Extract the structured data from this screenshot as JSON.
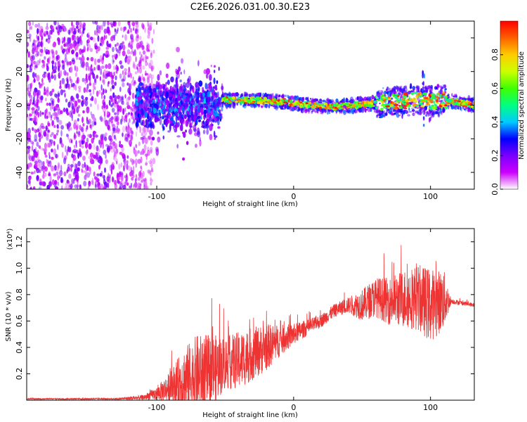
{
  "title": "C2E6.2026.031.00.30.E23",
  "chart_data": [
    {
      "type": "heatmap",
      "name": "spectrogram",
      "xlabel": "Height of straight line (km)",
      "ylabel": "Frequency (Hz)",
      "xlim": [
        -195,
        132
      ],
      "ylim": [
        -50,
        50
      ],
      "xticks": [
        -100,
        0,
        100
      ],
      "xtick_labels": [
        "-100",
        "0",
        "100"
      ],
      "yticks": [
        -40,
        -20,
        0,
        20,
        40
      ],
      "ytick_labels": [
        "-40",
        "-20",
        "0",
        "20",
        "40"
      ],
      "colorbar": {
        "label": "Normalized spectral amplitude",
        "range": [
          0,
          1
        ],
        "ticks": [
          0.0,
          0.2,
          0.4,
          0.6,
          0.8
        ],
        "tick_labels": [
          "0.0",
          "0.2",
          "0.4",
          "0.6",
          "0.8"
        ],
        "colors": [
          "#ffffff",
          "#cc00ff",
          "#7a00ff",
          "#0000ff",
          "#00ccff",
          "#00ff80",
          "#40ff00",
          "#ccff00",
          "#ffcc00",
          "#ff6000",
          "#ff0000"
        ]
      },
      "features": {
        "noise_region_x": [
          -195,
          -110
        ],
        "broadband_region_x": [
          -115,
          -52
        ],
        "narrow_line_region_x": [
          -52,
          132
        ],
        "line_centre_points": [
          [
            -52,
            3
          ],
          [
            -30,
            3
          ],
          [
            -10,
            2
          ],
          [
            10,
            0
          ],
          [
            30,
            -1
          ],
          [
            45,
            0
          ],
          [
            60,
            1
          ],
          [
            70,
            3
          ],
          [
            80,
            2
          ],
          [
            90,
            4
          ],
          [
            100,
            2
          ],
          [
            110,
            3
          ],
          [
            125,
            1
          ],
          [
            132,
            0
          ]
        ]
      }
    },
    {
      "type": "line",
      "name": "snr",
      "xlabel": "Height of straight line (km)",
      "ylabel": "SNR (10 * v/v)",
      "scale_label": "(x10⁴)",
      "xlim": [
        -195,
        132
      ],
      "ylim": [
        0,
        1.3
      ],
      "xticks": [
        -100,
        0,
        100
      ],
      "xtick_labels": [
        "-100",
        "0",
        "100"
      ],
      "yticks": [
        0.2,
        0.4,
        0.6,
        0.8,
        1.0,
        1.2
      ],
      "ytick_labels": [
        "0.2",
        "0.4",
        "0.6",
        "0.8",
        "1.0",
        "1.2"
      ],
      "series": [
        {
          "name": "SNR",
          "color": "#ee3333",
          "envelope_x": [
            -195,
            -130,
            -110,
            -100,
            -90,
            -80,
            -70,
            -60,
            -50,
            -40,
            -30,
            -20,
            -10,
            0,
            10,
            20,
            30,
            40,
            50,
            60,
            70,
            80,
            90,
            100,
            110,
            115,
            132
          ],
          "envelope_mean": [
            0.01,
            0.01,
            0.02,
            0.05,
            0.1,
            0.15,
            0.2,
            0.22,
            0.28,
            0.3,
            0.35,
            0.4,
            0.45,
            0.5,
            0.55,
            0.6,
            0.68,
            0.72,
            0.72,
            0.78,
            0.75,
            0.77,
            0.78,
            0.72,
            0.76,
            0.75,
            0.72
          ],
          "envelope_spread": [
            0.005,
            0.006,
            0.02,
            0.05,
            0.12,
            0.25,
            0.3,
            0.28,
            0.2,
            0.22,
            0.2,
            0.18,
            0.12,
            0.08,
            0.06,
            0.05,
            0.05,
            0.06,
            0.12,
            0.15,
            0.18,
            0.22,
            0.25,
            0.28,
            0.22,
            0.02,
            0.015
          ]
        }
      ]
    }
  ]
}
